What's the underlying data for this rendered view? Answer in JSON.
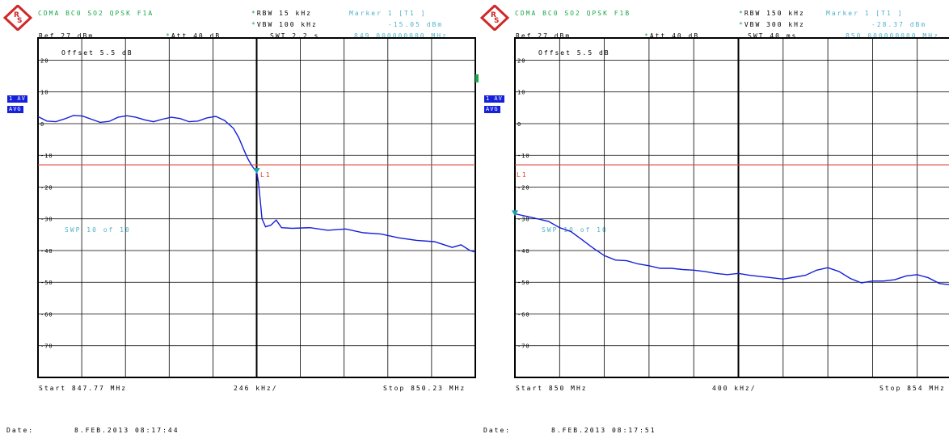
{
  "colors": {
    "trace": "#1520d8",
    "limit": "#e04030",
    "marker": "#1aa0a8",
    "grid": "#000000",
    "header_green": "#1aa84a",
    "header_cyan": "#4fb3c8"
  },
  "icons": [
    "rohde-schwarz-logo-icon",
    "marker-triangle-icon"
  ],
  "chart_data": [
    {
      "type": "line",
      "title": "CDMA BC0 SO2 QPSK F1A",
      "header": {
        "rbw": "RBW 15 kHz",
        "vbw": "VBW 100 kHz",
        "swt": "SWT 2.2 s",
        "marker": "Marker 1 [T1 ]",
        "marker_level": "-15.05 dBm",
        "marker_freq": "849.000000000 MHz",
        "ref": "Ref  27 dBm",
        "att": "Att  40 dB",
        "offset": "Offset  5.5 dB",
        "trace_box": "1 AV",
        "det_box": "AVG",
        "sweep": "SWP    10 of    10",
        "limit_label": "L1"
      },
      "footer": {
        "start": "Start 847.77 MHz",
        "span": "246 kHz/",
        "stop": "Stop 850.23 MHz",
        "date_label": "Date:",
        "date": "8.FEB.2013  08:17:44"
      },
      "y_ticks": [
        "20",
        "10",
        "0",
        "-10",
        "-20",
        "-30",
        "-40",
        "-50",
        "-60",
        "-70"
      ],
      "ylim": [
        -80,
        27
      ],
      "xlim": [
        847.77,
        850.23
      ],
      "limit_line_y": -13,
      "marker_point": {
        "x": 849.0,
        "y": -15.05
      },
      "x": [
        847.77,
        847.82,
        847.87,
        847.92,
        847.97,
        848.02,
        848.07,
        848.12,
        848.17,
        848.22,
        848.27,
        848.32,
        848.37,
        848.42,
        848.47,
        848.52,
        848.57,
        848.62,
        848.67,
        848.72,
        848.77,
        848.82,
        848.87,
        848.9,
        848.93,
        848.95,
        848.97,
        848.99,
        849.0,
        849.01,
        849.02,
        849.03,
        849.05,
        849.08,
        849.11,
        849.14,
        849.2,
        849.3,
        849.4,
        849.5,
        849.6,
        849.7,
        849.8,
        849.9,
        850.0,
        850.1,
        850.15,
        850.2,
        850.23
      ],
      "y": [
        2.2,
        0.8,
        0.6,
        1.5,
        2.6,
        2.4,
        1.4,
        0.4,
        0.7,
        2.0,
        2.5,
        2.0,
        1.2,
        0.6,
        1.4,
        2.0,
        1.6,
        0.6,
        0.8,
        1.8,
        2.3,
        1.0,
        -1.5,
        -4.5,
        -8.5,
        -11.0,
        -13.0,
        -14.6,
        -15.05,
        -18.5,
        -24.0,
        -30.0,
        -32.5,
        -32.0,
        -30.4,
        -32.8,
        -33.0,
        -32.8,
        -33.6,
        -33.2,
        -34.4,
        -34.8,
        -36.0,
        -36.8,
        -37.2,
        -39.0,
        -38.2,
        -40.0,
        -40.5
      ]
    },
    {
      "type": "line",
      "title": "CDMA BC0 SO2 QPSK F1B",
      "header": {
        "rbw": "RBW 150 kHz",
        "vbw": "VBW 300 kHz",
        "swt": "SWT 40 ms",
        "marker": "Marker 1 [T1 ]",
        "marker_level": "-28.37 dBm",
        "marker_freq": "850.000000000 MHz",
        "ref": "Ref  27 dBm",
        "att": "Att  40 dB",
        "offset": "Offset  5.5 dB",
        "trace_box": "1 AV",
        "det_box": "AVG",
        "sweep": "SWP    10 of    10",
        "limit_label": "L1"
      },
      "footer": {
        "start": "Start 850 MHz",
        "span": "400 kHz/",
        "stop": "Stop 854 MHz",
        "date_label": "Date:",
        "date": "8.FEB.2013  08:17:51"
      },
      "y_ticks": [
        "20",
        "10",
        "0",
        "-10",
        "-20",
        "-30",
        "-40",
        "-50",
        "-60",
        "-70"
      ],
      "ylim": [
        -80,
        27
      ],
      "xlim": [
        850,
        854
      ],
      "limit_line_y": -13,
      "marker_point": {
        "x": 850.0,
        "y": -28.37
      },
      "x": [
        850.0,
        850.1,
        850.2,
        850.3,
        850.4,
        850.5,
        850.6,
        850.7,
        850.8,
        850.9,
        851.0,
        851.1,
        851.2,
        851.3,
        851.4,
        851.5,
        851.6,
        851.7,
        851.8,
        851.9,
        852.0,
        852.1,
        852.2,
        852.3,
        852.4,
        852.5,
        852.6,
        852.7,
        852.8,
        852.9,
        853.0,
        853.1,
        853.2,
        853.3,
        853.4,
        853.5,
        853.6,
        853.7,
        853.8,
        853.9,
        854.0
      ],
      "y": [
        -28.4,
        -29.2,
        -30.0,
        -30.8,
        -32.8,
        -34.0,
        -36.6,
        -39.2,
        -41.6,
        -43.0,
        -43.2,
        -44.2,
        -44.8,
        -45.6,
        -45.6,
        -46.0,
        -46.2,
        -46.6,
        -47.2,
        -47.6,
        -47.2,
        -47.8,
        -48.2,
        -48.6,
        -49.0,
        -48.4,
        -47.8,
        -46.2,
        -45.4,
        -46.6,
        -48.8,
        -50.2,
        -49.6,
        -49.6,
        -49.2,
        -48.0,
        -47.6,
        -48.6,
        -50.4,
        -50.8,
        -51.0
      ]
    }
  ]
}
